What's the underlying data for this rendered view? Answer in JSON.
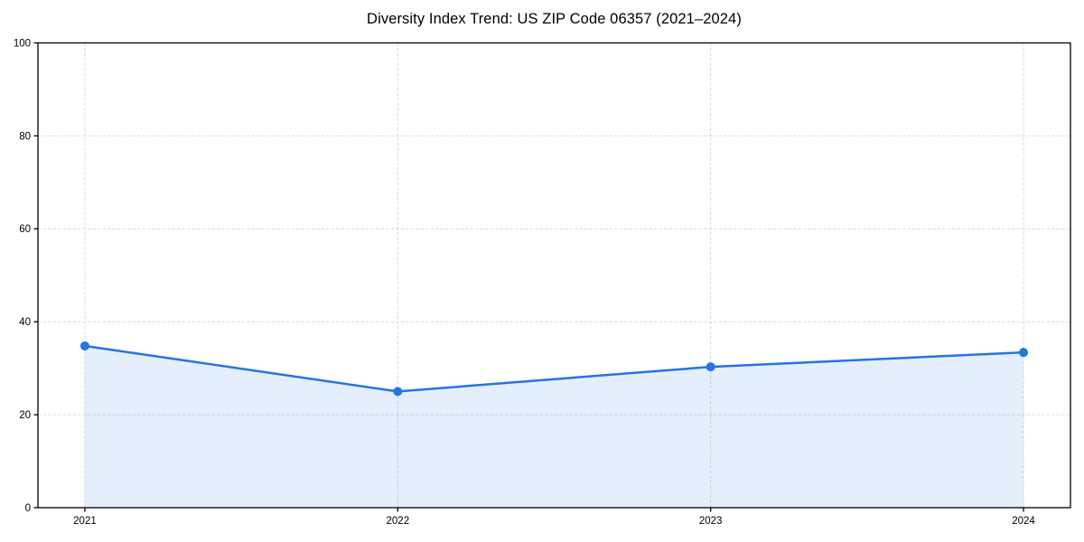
{
  "chart_data": {
    "type": "line",
    "title": "Diversity Index Trend: US ZIP Code 06357 (2021–2024)",
    "x": [
      2021,
      2022,
      2023,
      2024
    ],
    "x_tick_labels": [
      "2021",
      "2022",
      "2023",
      "2024"
    ],
    "series": [
      {
        "name": "Diversity Index",
        "values": [
          34.8,
          25.0,
          30.3,
          33.4
        ]
      }
    ],
    "xlabel": "",
    "ylabel": "",
    "xlim": [
      2020.85,
      2024.15
    ],
    "ylim": [
      0,
      100
    ],
    "y_ticks": [
      0,
      20,
      40,
      60,
      80,
      100
    ],
    "grid": true,
    "grid_style": "dashed",
    "legend_position": "none",
    "area_fill_under_line": true,
    "colors": {
      "line": "#2673e2",
      "marker": "#2673e2",
      "area_fill": "rgba(38,115,226,0.12)",
      "grid": "#dcdcdc",
      "axis": "#000000",
      "text": "#000000",
      "background": "#ffffff"
    }
  }
}
